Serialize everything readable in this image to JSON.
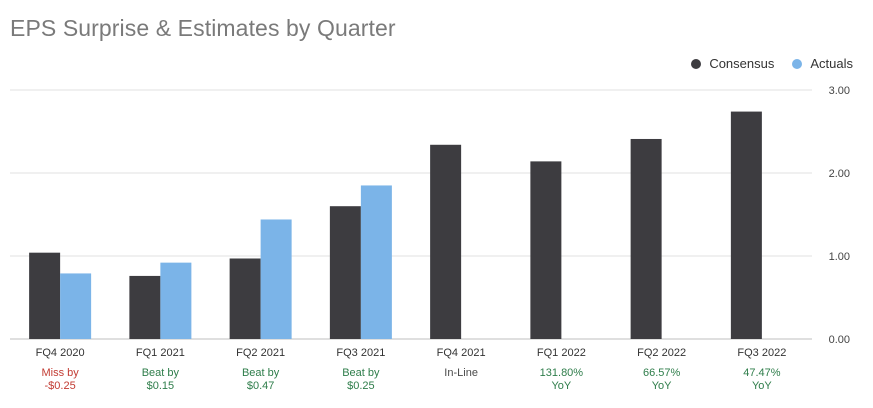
{
  "colors": {
    "consensus": "#3d3c40",
    "actuals": "#7bb4e8",
    "miss": "#c23b32",
    "beat": "#2e7d4a",
    "neutral": "#4a4a4a"
  },
  "chart_data": {
    "type": "bar",
    "title": "EPS Surprise & Estimates by Quarter",
    "categories": [
      "FQ4 2020",
      "FQ1 2021",
      "FQ2 2021",
      "FQ3 2021",
      "FQ4 2021",
      "FQ1 2022",
      "FQ2 2022",
      "FQ3 2022"
    ],
    "series": [
      {
        "name": "Consensus",
        "values": [
          1.04,
          0.76,
          0.97,
          1.6,
          2.34,
          2.14,
          2.41,
          2.74
        ]
      },
      {
        "name": "Actuals",
        "values": [
          0.79,
          0.92,
          1.44,
          1.85,
          null,
          null,
          null,
          null
        ]
      }
    ],
    "ylim": [
      0,
      3
    ],
    "yticks": [
      "0.00",
      "1.00",
      "2.00",
      "3.00"
    ],
    "ytick_values": [
      0,
      1,
      2,
      3
    ],
    "grid": true,
    "legend_position": "top-right",
    "annotations": [
      {
        "line1": "Miss by",
        "line2": "-$0.25",
        "status": "miss"
      },
      {
        "line1": "Beat by",
        "line2": "$0.15",
        "status": "beat"
      },
      {
        "line1": "Beat by",
        "line2": "$0.47",
        "status": "beat"
      },
      {
        "line1": "Beat by",
        "line2": "$0.25",
        "status": "beat"
      },
      {
        "line1": "In-Line",
        "line2": "",
        "status": "neutral"
      },
      {
        "line1": "131.80%",
        "line2": "YoY",
        "status": "beat"
      },
      {
        "line1": "66.57%",
        "line2": "YoY",
        "status": "beat"
      },
      {
        "line1": "47.47%",
        "line2": "YoY",
        "status": "beat"
      }
    ]
  }
}
